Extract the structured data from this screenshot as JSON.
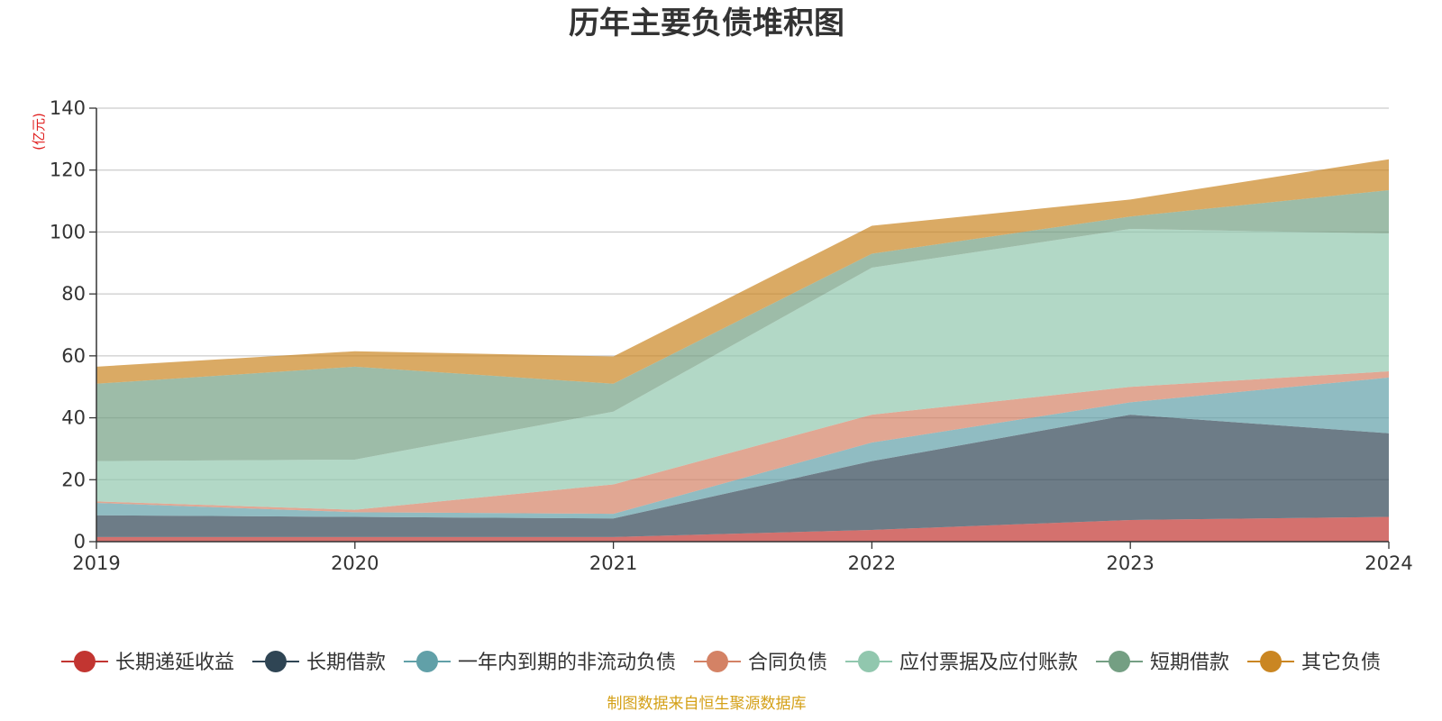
{
  "chart_data": {
    "type": "area",
    "stacked": true,
    "title": "历年主要负债堆积图",
    "unit_label": "(亿元)",
    "categories": [
      "2019",
      "2020",
      "2021",
      "2022",
      "2023",
      "2024"
    ],
    "ylim": [
      0,
      140
    ],
    "yticks": [
      0,
      20,
      40,
      60,
      80,
      100,
      120,
      140
    ],
    "grid": true,
    "legend_position": "bottom",
    "series": [
      {
        "name": "长期递延收益",
        "color": "#c23531",
        "values": [
          1.5,
          1.5,
          1.5,
          3.8,
          7.0,
          8.0
        ]
      },
      {
        "name": "长期借款",
        "color": "#2f4554",
        "values": [
          7.0,
          6.5,
          6.0,
          22.2,
          34.0,
          27.0
        ]
      },
      {
        "name": "一年内到期的非流动负债",
        "color": "#61a0a8",
        "values": [
          4.0,
          1.5,
          1.5,
          6.0,
          4.0,
          18.0
        ]
      },
      {
        "name": "合同负债",
        "color": "#d48265",
        "values": [
          0.5,
          0.8,
          9.5,
          9.0,
          5.0,
          2.0
        ]
      },
      {
        "name": "应付票据及应付账款",
        "color": "#91c7ae",
        "values": [
          13.0,
          16.2,
          23.5,
          47.5,
          51.0,
          44.5
        ]
      },
      {
        "name": "短期借款",
        "color": "#749f83",
        "values": [
          25.0,
          30.0,
          9.0,
          4.5,
          4.0,
          14.0
        ]
      },
      {
        "name": "其它负债",
        "color": "#ca8622",
        "values": [
          5.5,
          5.0,
          8.8,
          9.0,
          5.5,
          10.0
        ]
      }
    ]
  },
  "source_note": "制图数据来自恒生聚源数据库"
}
